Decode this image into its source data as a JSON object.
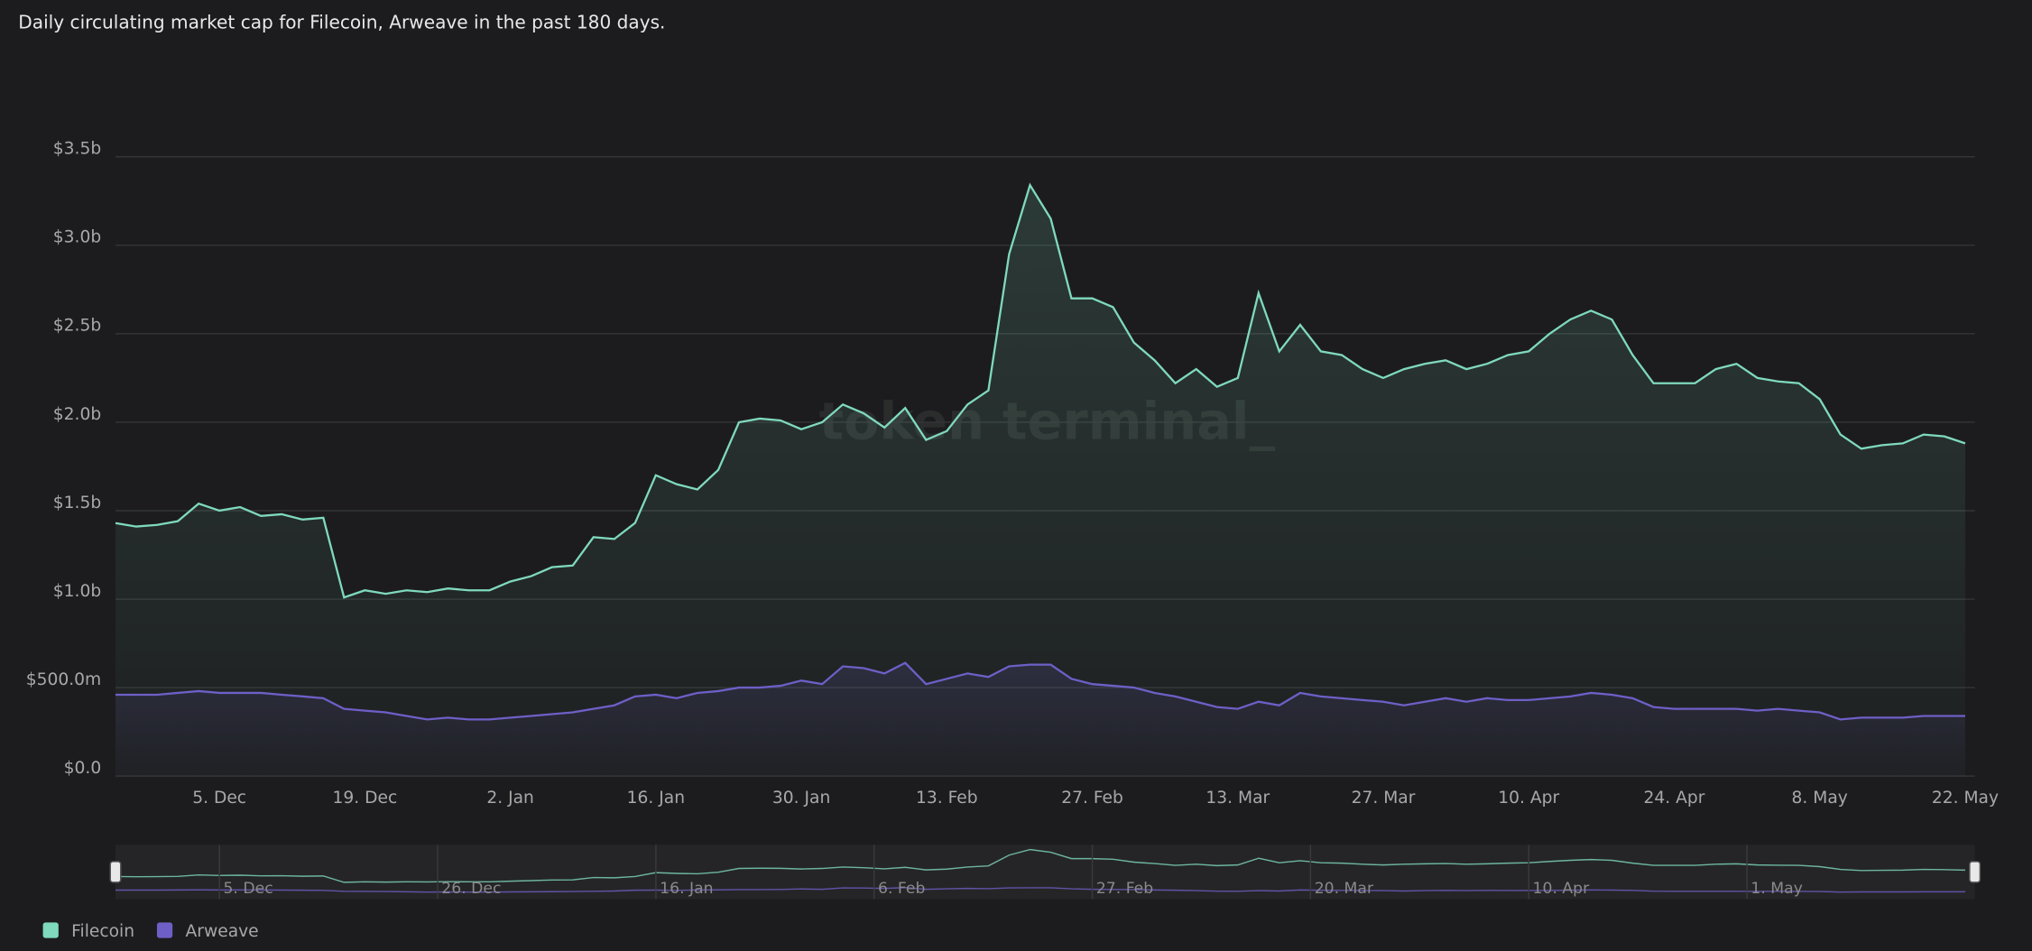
{
  "chart_data": {
    "type": "line",
    "title": "Daily circulating market cap for Filecoin, Arweave in the past 180 days.",
    "watermark": "token terminal_",
    "categories": [
      null,
      null,
      null,
      null,
      null,
      "5. Dec",
      null,
      null,
      null,
      null,
      null,
      null,
      "19. Dec",
      null,
      null,
      null,
      null,
      null,
      null,
      "2. Jan",
      null,
      null,
      null,
      null,
      null,
      null,
      "16. Jan",
      null,
      null,
      null,
      null,
      null,
      null,
      "30. Jan",
      null,
      null,
      null,
      null,
      null,
      null,
      "13. Feb",
      null,
      null,
      null,
      null,
      null,
      null,
      "27. Feb",
      null,
      null,
      null,
      null,
      null,
      null,
      "13. Mar",
      null,
      null,
      null,
      null,
      null,
      null,
      "27. Mar",
      null,
      null,
      null,
      null,
      null,
      null,
      "10. Apr",
      null,
      null,
      null,
      null,
      null,
      null,
      "24. Apr",
      null,
      null,
      null,
      null,
      null,
      null,
      "8. May",
      null,
      null,
      null,
      null,
      null,
      null,
      "22. May"
    ],
    "series": [
      {
        "name": "Filecoin",
        "color": "#7fd9bd",
        "values": [
          1.43,
          1.41,
          1.42,
          1.44,
          1.54,
          1.5,
          1.52,
          1.47,
          1.48,
          1.45,
          1.46,
          1.01,
          1.05,
          1.03,
          1.05,
          1.04,
          1.06,
          1.05,
          1.05,
          1.1,
          1.13,
          1.18,
          1.19,
          1.35,
          1.34,
          1.43,
          1.7,
          1.65,
          1.62,
          1.73,
          2.0,
          2.02,
          2.01,
          1.96,
          2.0,
          2.1,
          2.05,
          1.97,
          2.08,
          1.9,
          1.95,
          2.1,
          2.18,
          2.95,
          3.34,
          3.15,
          2.7,
          2.7,
          2.65,
          2.45,
          2.35,
          2.22,
          2.3,
          2.2,
          2.25,
          2.73,
          2.4,
          2.55,
          2.4,
          2.38,
          2.3,
          2.25,
          2.3,
          2.33,
          2.35,
          2.3,
          2.33,
          2.38,
          2.4,
          2.5,
          2.58,
          2.63,
          2.58,
          2.38,
          2.22,
          2.22,
          2.22,
          2.3,
          2.33,
          2.25,
          2.23,
          2.22,
          2.13,
          1.93,
          1.85,
          1.87,
          1.88,
          1.93,
          1.92,
          1.88
        ]
      },
      {
        "name": "Arweave",
        "color": "#6e5fc7",
        "values": [
          0.46,
          0.46,
          0.46,
          0.47,
          0.48,
          0.47,
          0.47,
          0.47,
          0.46,
          0.45,
          0.44,
          0.38,
          0.37,
          0.36,
          0.34,
          0.32,
          0.33,
          0.32,
          0.32,
          0.33,
          0.34,
          0.35,
          0.36,
          0.38,
          0.4,
          0.45,
          0.46,
          0.44,
          0.47,
          0.48,
          0.5,
          0.5,
          0.51,
          0.54,
          0.52,
          0.62,
          0.61,
          0.58,
          0.64,
          0.52,
          0.55,
          0.58,
          0.56,
          0.62,
          0.63,
          0.63,
          0.55,
          0.52,
          0.51,
          0.5,
          0.47,
          0.45,
          0.42,
          0.39,
          0.38,
          0.42,
          0.4,
          0.47,
          0.45,
          0.44,
          0.43,
          0.42,
          0.4,
          0.42,
          0.44,
          0.42,
          0.44,
          0.43,
          0.43,
          0.44,
          0.45,
          0.47,
          0.46,
          0.44,
          0.39,
          0.38,
          0.38,
          0.38,
          0.38,
          0.37,
          0.38,
          0.37,
          0.36,
          0.32,
          0.33,
          0.33,
          0.33,
          0.34,
          0.34,
          0.34
        ]
      }
    ],
    "ylim": [
      0,
      3.5
    ],
    "yticks": [
      {
        "value": 0,
        "label": "$0.0"
      },
      {
        "value": 0.5,
        "label": "$500.0m"
      },
      {
        "value": 1,
        "label": "$1.0b"
      },
      {
        "value": 1.5,
        "label": "$1.5b"
      },
      {
        "value": 2,
        "label": "$2.0b"
      },
      {
        "value": 2.5,
        "label": "$2.5b"
      },
      {
        "value": 3,
        "label": "$3.0b"
      },
      {
        "value": 3.5,
        "label": "$3.5b"
      }
    ],
    "grid": true,
    "legend": "bottom-left",
    "navigator_ticks": [
      "5. Dec",
      "26. Dec",
      "16. Jan",
      "6. Feb",
      "27. Feb",
      "20. Mar",
      "10. Apr",
      "1. May"
    ]
  }
}
